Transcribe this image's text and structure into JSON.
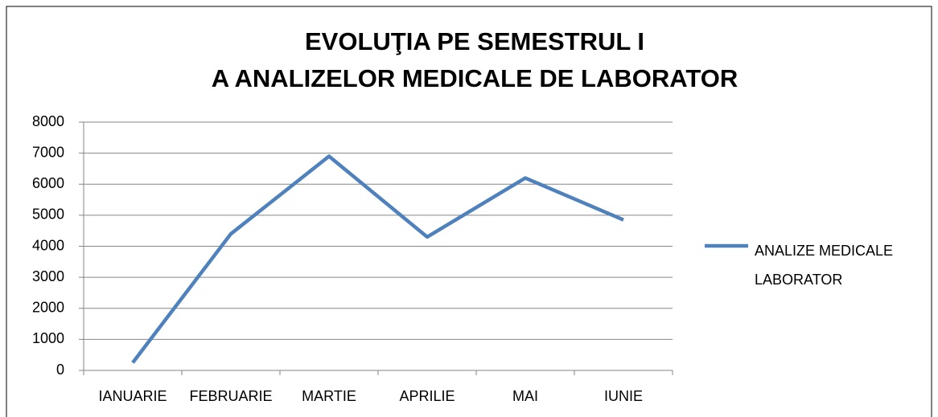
{
  "chart_data": {
    "type": "line",
    "title": [
      "EVOLUŢIA PE SEMESTRUL I",
      "A ANALIZELOR MEDICALE DE LABORATOR"
    ],
    "categories": [
      "IANUARIE",
      "FEBRUARIE",
      "MARTIE",
      "APRILIE",
      "MAI",
      "IUNIE"
    ],
    "series": [
      {
        "name": "ANALIZE MEDICALE LABORATOR",
        "color": "#4f81bd",
        "values": [
          250,
          4400,
          6900,
          4300,
          6200,
          4850
        ]
      }
    ],
    "ylim": [
      0,
      8000
    ],
    "yticks": [
      0,
      1000,
      2000,
      3000,
      4000,
      5000,
      6000,
      7000,
      8000
    ],
    "grid": true,
    "legend": "right"
  }
}
